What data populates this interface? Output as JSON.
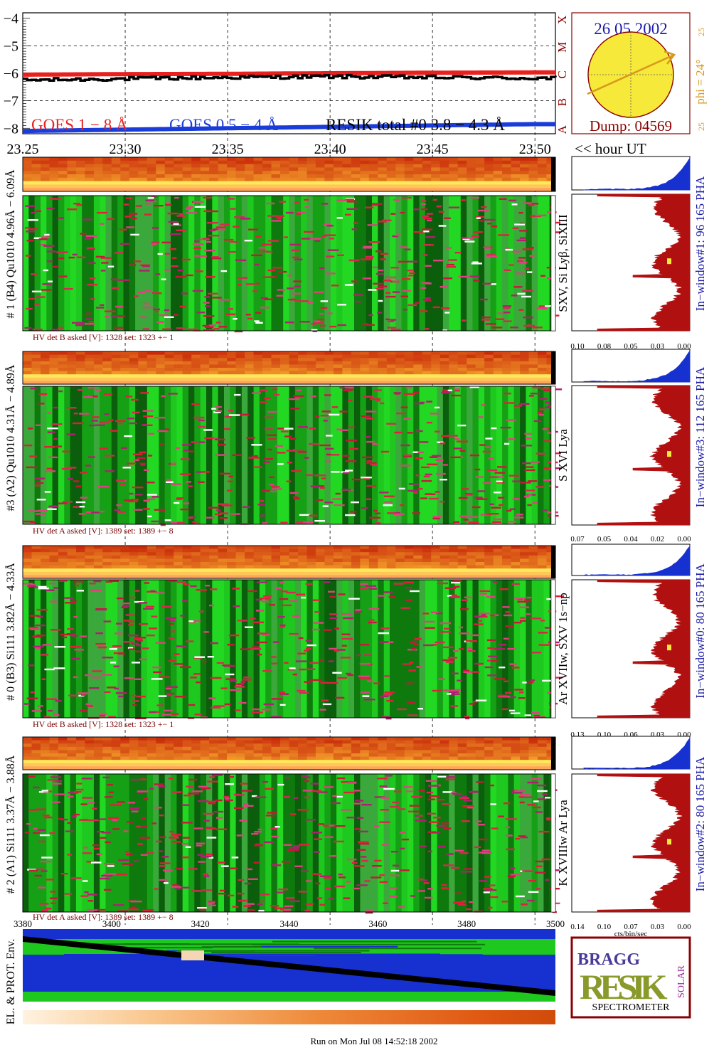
{
  "goes": {
    "yticks": [
      "−4",
      "−5",
      "−6",
      "−7",
      "−8"
    ],
    "class_letters": [
      "X",
      "M",
      "C",
      "B",
      "A"
    ],
    "legend_goes18": "GOES 1 − 8 Å",
    "legend_goes054": "GOES 0.5 − 4 Å",
    "legend_resik": "RESIK total #0  3.8 − 4.3 Å",
    "xticks": [
      "23.25",
      "23.30",
      "23.35",
      "23.40",
      "23.45",
      "23.50"
    ],
    "time_unit": "<< hour UT"
  },
  "sun": {
    "date": "26 05 2002",
    "dump": "Dump: 04569",
    "phi": "phi = 24°",
    "tick_top": "25",
    "tick_bottom": "25"
  },
  "panels": [
    {
      "side_label": "# 1 (B4) Qu1010 4.96Å − 6.09Å",
      "line_label": "SXV, Si Lyβ, SiXIII",
      "hv": "HV det B asked [V]:  1328 set:  1323  +−    1",
      "window": "In−window#1:   96 165  PHA",
      "hist_ticks": [
        "0.10",
        "0.08",
        "0.05",
        "0.03",
        "0.00"
      ]
    },
    {
      "side_label": "#3 (A2) Qu1010  4.31Å − 4.89Å",
      "line_label": "S XVI Lya",
      "hv": "HV det A asked [V]:  1389 set:  1389  +−    8",
      "window": "In−window#3:   112 165  PHA",
      "hist_ticks": [
        "0.07",
        "0.05",
        "0.04",
        "0.02",
        "0.00"
      ]
    },
    {
      "side_label": "# 0 (B3) Si111  3.82Å − 4.33Å",
      "line_label": "Ar XVIIw, SXV 1s−np",
      "hv": "HV det B asked [V]:  1328 set:  1323  +−    1",
      "window": "In−window#0:   80 165  PHA",
      "hist_ticks": [
        "0.13",
        "0.10",
        "0.06",
        "0.03",
        "0.00"
      ]
    },
    {
      "side_label": "# 2 (A1) Si111  3.37Å − 3.88Å",
      "line_label": "K XVIIIw  Ar Lya",
      "hv": "HV det A asked [V]:  1389 set:  1389  +−    8",
      "window": "In−window#2:   80 165  PHA",
      "hist_ticks": [
        "0.14",
        "0.10",
        "0.07",
        "0.03",
        "0.00"
      ]
    }
  ],
  "hist_unit": "cts/bin/sec",
  "env": {
    "label": "EL. & PROT. Env.",
    "xticks": [
      "3380",
      "3400",
      "3420",
      "3440",
      "3460",
      "3480",
      "3500"
    ]
  },
  "logo": {
    "bragg": "BRAGG",
    "resik": "RESIK",
    "solar": "SOLAR",
    "spectrometer": "SPECTROMETER"
  },
  "footer": "Run on Mon Jul 08 14:52:18 2002",
  "colors": {
    "goes18": "#e8201e",
    "goes054": "#1a3cd8",
    "resik": "#000000",
    "dark_red": "#8b0000",
    "label_red": "#7a0000",
    "label_blue": "#1a1aa8",
    "orange": "#d89a1c",
    "sun_fill": "#f7e93a",
    "hist_fill": "#b01010",
    "pha_fill": "#1730d0"
  },
  "chart_data": [
    {
      "type": "line",
      "x": [
        23.25,
        23.3,
        23.35,
        23.4,
        23.45,
        23.5
      ],
      "xlim": [
        23.25,
        23.51
      ],
      "ylim": [
        -8.2,
        -3.8
      ],
      "ylabel": "",
      "xlabel": "",
      "series": [
        {
          "name": "GOES 1 − 8 Å",
          "values": [
            -6.05,
            -6.03,
            -6.02,
            -6.0,
            -5.98,
            -5.97
          ]
        },
        {
          "name": "GOES 0.5 − 4 Å",
          "values": [
            -8.1,
            -8.05,
            -8.0,
            -7.95,
            -7.9,
            -7.85
          ]
        },
        {
          "name": "RESIK total #0  3.8 − 4.3 Å",
          "values": [
            -6.25,
            -6.2,
            -6.15,
            -6.12,
            -6.15,
            -6.18
          ]
        }
      ]
    }
  ]
}
